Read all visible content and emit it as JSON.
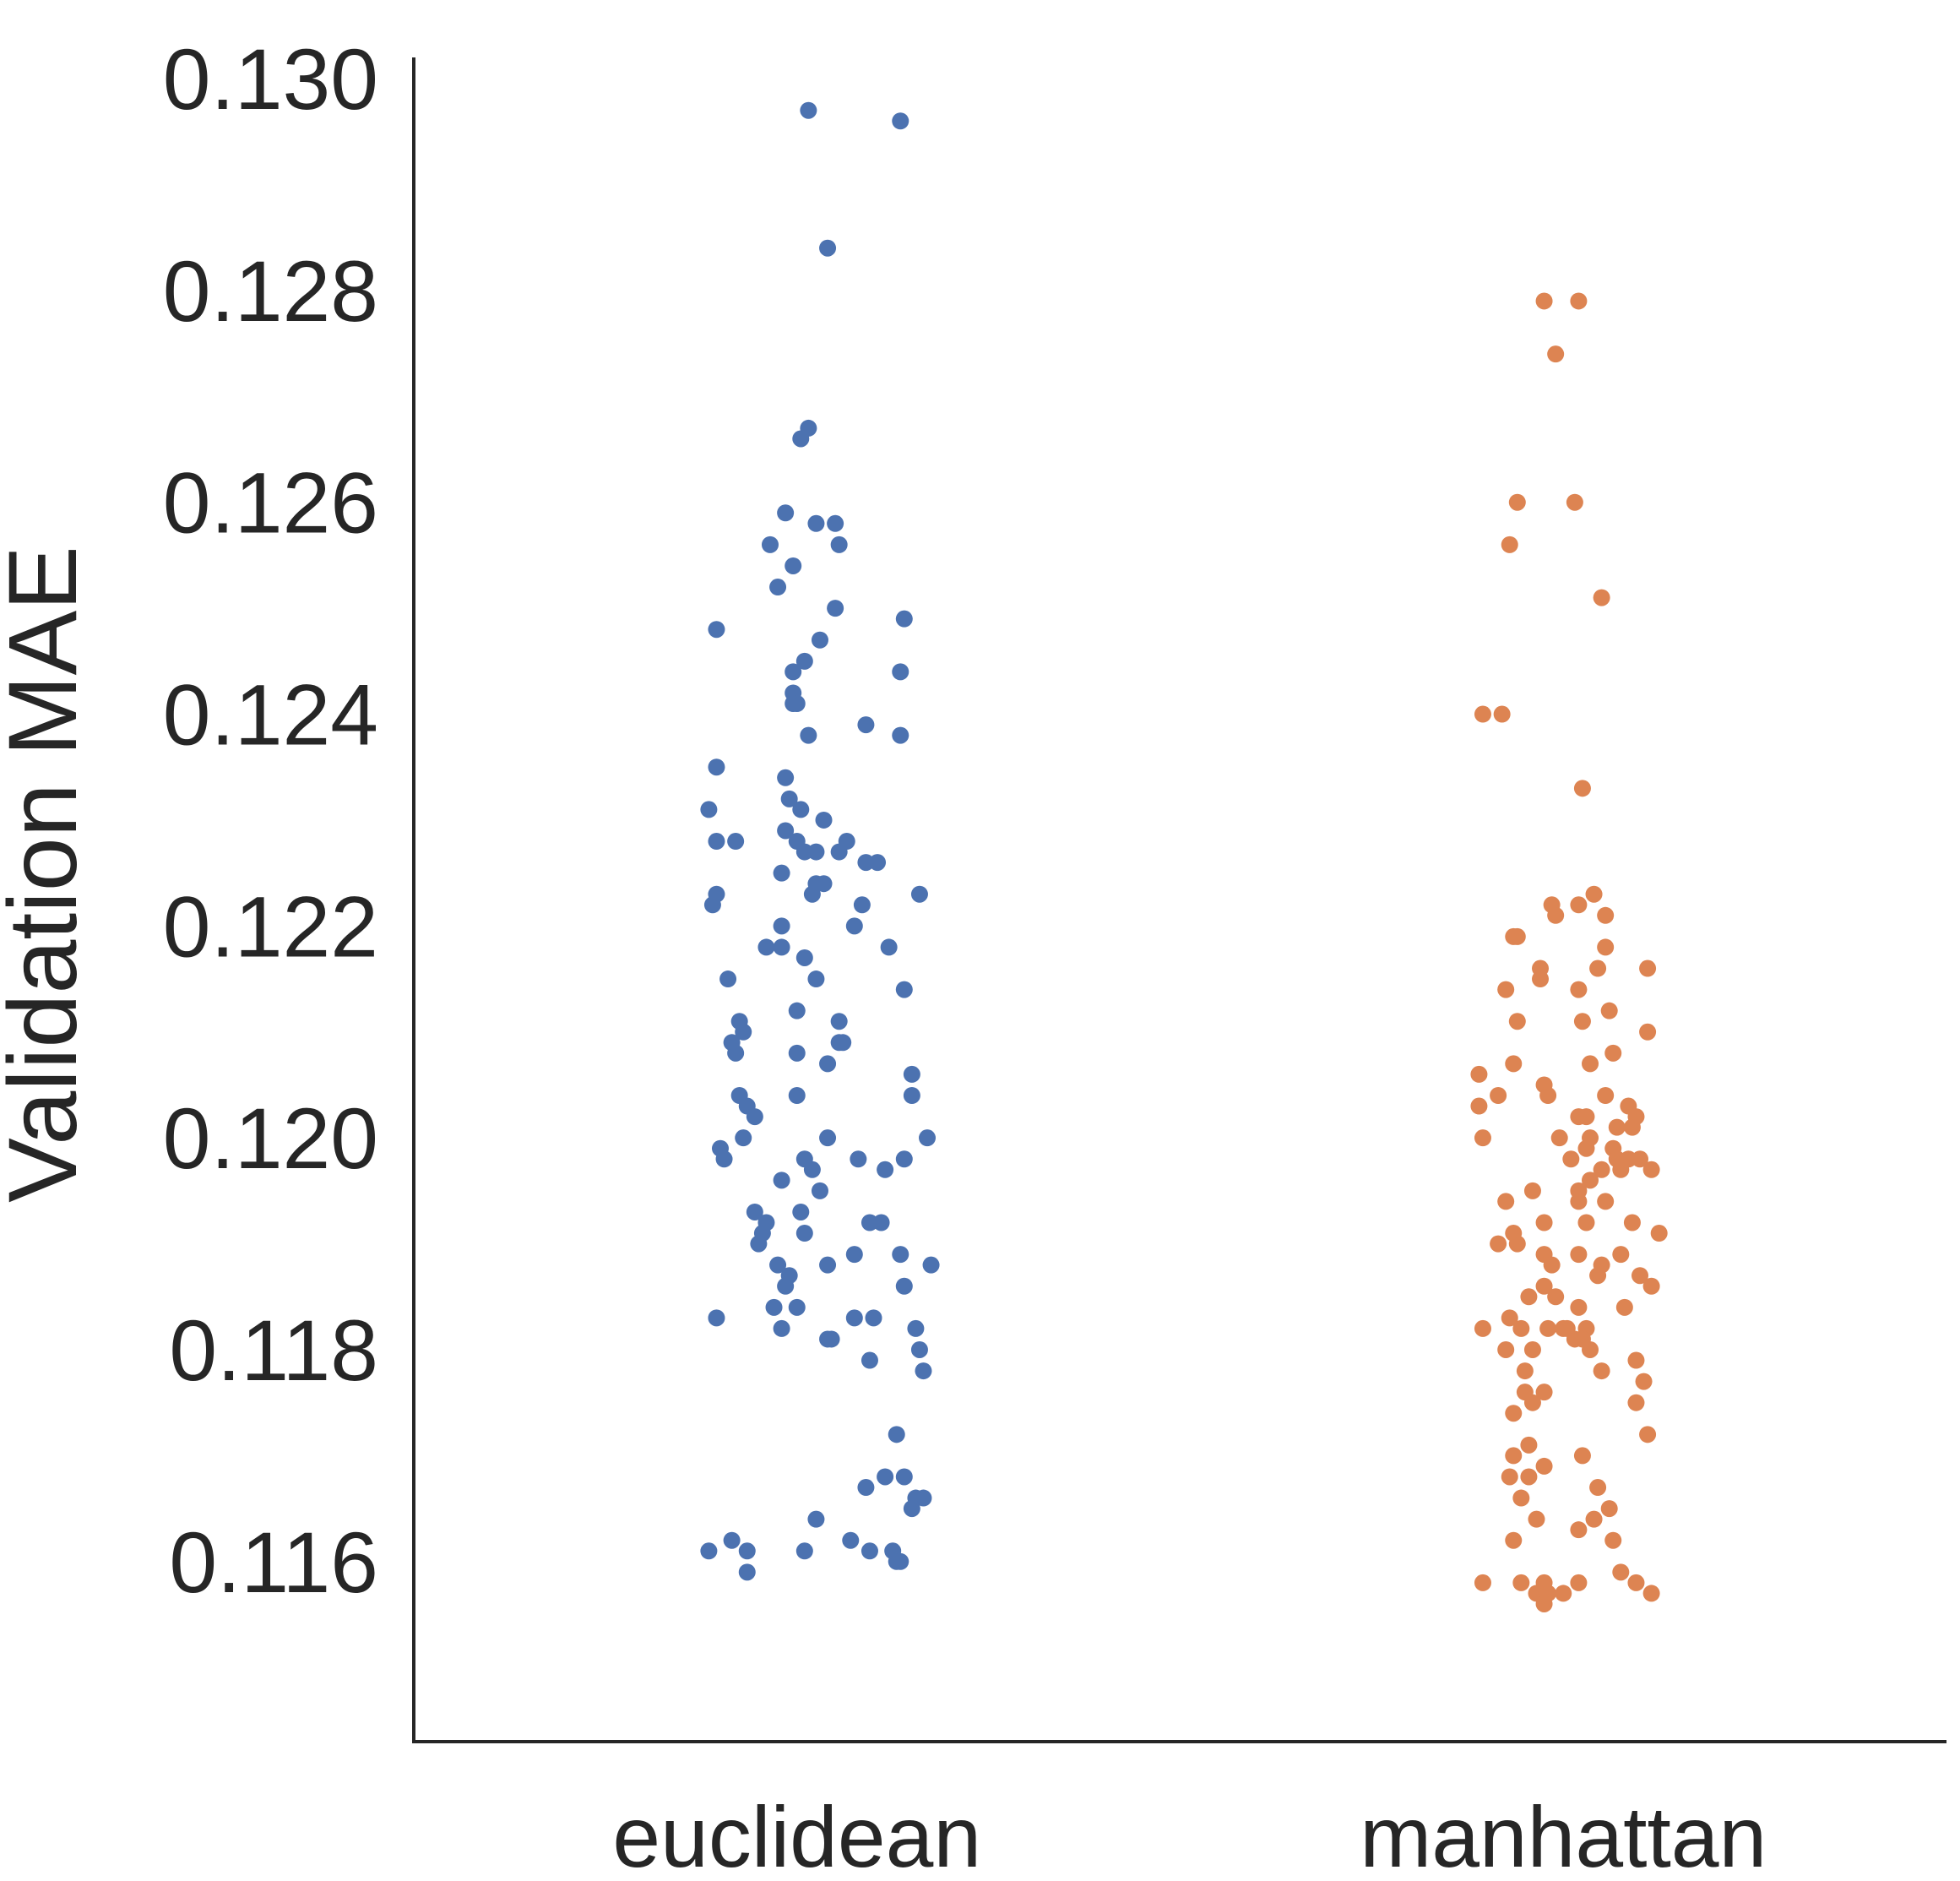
{
  "chart_data": {
    "type": "scatter",
    "subtype": "strip",
    "title": "",
    "xlabel": "",
    "ylabel": "Validation MAE",
    "ylim": [
      0.1143,
      0.1302
    ],
    "yticks": [
      0.116,
      0.118,
      0.12,
      0.122,
      0.124,
      0.126,
      0.128,
      0.13
    ],
    "ytick_labels": [
      "0.116",
      "0.118",
      "0.120",
      "0.122",
      "0.124",
      "0.126",
      "0.128",
      "0.130"
    ],
    "categories": [
      "euclidean",
      "manhattan"
    ],
    "grid": false,
    "legend": "none",
    "series": [
      {
        "category": "euclidean",
        "color": "#4c72b0",
        "points": [
          [
            0.03,
            0.1297
          ],
          [
            0.27,
            0.1296
          ],
          [
            0.08,
            0.1284
          ],
          [
            0.03,
            0.1267
          ],
          [
            0.01,
            0.1266
          ],
          [
            -0.03,
            0.1259
          ],
          [
            -0.07,
            0.1256
          ],
          [
            0.05,
            0.1258
          ],
          [
            0.1,
            0.1258
          ],
          [
            0.11,
            0.1256
          ],
          [
            -0.01,
            0.1254
          ],
          [
            -0.05,
            0.1252
          ],
          [
            0.1,
            0.125
          ],
          [
            -0.21,
            0.1248
          ],
          [
            0.28,
            0.1249
          ],
          [
            0.06,
            0.1247
          ],
          [
            0.02,
            0.1245
          ],
          [
            -0.01,
            0.1244
          ],
          [
            0.27,
            0.1244
          ],
          [
            -0.01,
            0.1242
          ],
          [
            0.0,
            0.1241
          ],
          [
            -0.01,
            0.1241
          ],
          [
            0.03,
            0.1238
          ],
          [
            0.18,
            0.1239
          ],
          [
            0.27,
            0.1238
          ],
          [
            -0.21,
            0.1235
          ],
          [
            -0.03,
            0.1234
          ],
          [
            -0.23,
            0.1231
          ],
          [
            -0.02,
            0.1232
          ],
          [
            0.01,
            0.1231
          ],
          [
            0.07,
            0.123
          ],
          [
            -0.03,
            0.1229
          ],
          [
            -0.21,
            0.1228
          ],
          [
            -0.16,
            0.1228
          ],
          [
            0.0,
            0.1228
          ],
          [
            0.02,
            0.1227
          ],
          [
            0.05,
            0.1227
          ],
          [
            0.13,
            0.1228
          ],
          [
            0.11,
            0.1227
          ],
          [
            0.18,
            0.1226
          ],
          [
            0.21,
            0.1226
          ],
          [
            -0.04,
            0.1225
          ],
          [
            0.05,
            0.1224
          ],
          [
            0.07,
            0.1224
          ],
          [
            0.04,
            0.1223
          ],
          [
            -0.21,
            0.1223
          ],
          [
            -0.22,
            0.1222
          ],
          [
            0.32,
            0.1223
          ],
          [
            0.17,
            0.1222
          ],
          [
            -0.04,
            0.122
          ],
          [
            0.15,
            0.122
          ],
          [
            -0.08,
            0.1218
          ],
          [
            -0.04,
            0.1218
          ],
          [
            0.24,
            0.1218
          ],
          [
            0.02,
            0.1217
          ],
          [
            -0.18,
            0.1215
          ],
          [
            0.05,
            0.1215
          ],
          [
            0.28,
            0.1214
          ],
          [
            0.0,
            0.1212
          ],
          [
            -0.15,
            0.1211
          ],
          [
            0.11,
            0.1211
          ],
          [
            -0.14,
            0.121
          ],
          [
            -0.17,
            0.1209
          ],
          [
            0.11,
            0.1209
          ],
          [
            0.12,
            0.1209
          ],
          [
            -0.16,
            0.1208
          ],
          [
            0.0,
            0.1208
          ],
          [
            0.08,
            0.1207
          ],
          [
            0.3,
            0.1206
          ],
          [
            -0.15,
            0.1204
          ],
          [
            0.0,
            0.1204
          ],
          [
            0.3,
            0.1204
          ],
          [
            -0.13,
            0.1203
          ],
          [
            -0.11,
            0.1202
          ],
          [
            -0.2,
            0.1199
          ],
          [
            -0.14,
            0.12
          ],
          [
            0.08,
            0.12
          ],
          [
            0.34,
            0.12
          ],
          [
            -0.19,
            0.1198
          ],
          [
            0.02,
            0.1198
          ],
          [
            0.16,
            0.1198
          ],
          [
            0.28,
            0.1198
          ],
          [
            0.23,
            0.1197
          ],
          [
            0.04,
            0.1197
          ],
          [
            -0.04,
            0.1196
          ],
          [
            0.06,
            0.1195
          ],
          [
            -0.11,
            0.1193
          ],
          [
            0.01,
            0.1193
          ],
          [
            -0.08,
            0.1192
          ],
          [
            0.22,
            0.1192
          ],
          [
            0.19,
            0.1192
          ],
          [
            0.02,
            0.1191
          ],
          [
            -0.09,
            0.1191
          ],
          [
            -0.1,
            0.119
          ],
          [
            0.15,
            0.1189
          ],
          [
            0.27,
            0.1189
          ],
          [
            0.35,
            0.1188
          ],
          [
            0.08,
            0.1188
          ],
          [
            -0.05,
            0.1188
          ],
          [
            -0.02,
            0.1187
          ],
          [
            -0.03,
            0.1186
          ],
          [
            0.28,
            0.1186
          ],
          [
            -0.06,
            0.1184
          ],
          [
            0.0,
            0.1184
          ],
          [
            0.15,
            0.1183
          ],
          [
            0.2,
            0.1183
          ],
          [
            -0.21,
            0.1183
          ],
          [
            0.31,
            0.1182
          ],
          [
            -0.04,
            0.1182
          ],
          [
            0.09,
            0.1181
          ],
          [
            0.08,
            0.1181
          ],
          [
            0.19,
            0.1179
          ],
          [
            0.32,
            0.118
          ],
          [
            0.33,
            0.1178
          ],
          [
            0.26,
            0.1172
          ],
          [
            0.23,
            0.1168
          ],
          [
            0.28,
            0.1168
          ],
          [
            0.31,
            0.1166
          ],
          [
            0.18,
            0.1167
          ],
          [
            0.33,
            0.1166
          ],
          [
            0.3,
            0.1165
          ],
          [
            0.05,
            0.1164
          ],
          [
            -0.17,
            0.1162
          ],
          [
            0.14,
            0.1162
          ],
          [
            0.19,
            0.1161
          ],
          [
            -0.13,
            0.1161
          ],
          [
            0.02,
            0.1161
          ],
          [
            0.25,
            0.1161
          ],
          [
            0.26,
            0.116
          ],
          [
            -0.13,
            0.1159
          ],
          [
            0.27,
            0.116
          ],
          [
            -0.23,
            0.1161
          ]
        ]
      },
      {
        "category": "manhattan",
        "color": "#dd8452",
        "points": [
          [
            -0.05,
            0.1279
          ],
          [
            0.04,
            0.1279
          ],
          [
            -0.02,
            0.1274
          ],
          [
            -0.12,
            0.126
          ],
          [
            -0.14,
            0.1256
          ],
          [
            0.03,
            0.126
          ],
          [
            0.1,
            0.1251
          ],
          [
            -0.21,
            0.124
          ],
          [
            -0.16,
            0.124
          ],
          [
            0.05,
            0.1233
          ],
          [
            0.08,
            0.1223
          ],
          [
            -0.03,
            0.1222
          ],
          [
            0.04,
            0.1222
          ],
          [
            0.11,
            0.1221
          ],
          [
            -0.02,
            0.1221
          ],
          [
            -0.12,
            0.1219
          ],
          [
            -0.13,
            0.1219
          ],
          [
            0.11,
            0.1218
          ],
          [
            -0.06,
            0.1216
          ],
          [
            0.09,
            0.1216
          ],
          [
            0.22,
            0.1216
          ],
          [
            -0.06,
            0.1215
          ],
          [
            0.04,
            0.1214
          ],
          [
            -0.15,
            0.1214
          ],
          [
            0.12,
            0.1212
          ],
          [
            -0.12,
            0.1211
          ],
          [
            0.05,
            0.1211
          ],
          [
            0.22,
            0.121
          ],
          [
            0.13,
            0.1208
          ],
          [
            -0.13,
            0.1207
          ],
          [
            0.07,
            0.1207
          ],
          [
            -0.22,
            0.1206
          ],
          [
            -0.05,
            0.1205
          ],
          [
            -0.04,
            0.1204
          ],
          [
            -0.17,
            0.1204
          ],
          [
            0.11,
            0.1204
          ],
          [
            -0.22,
            0.1203
          ],
          [
            0.17,
            0.1203
          ],
          [
            0.04,
            0.1202
          ],
          [
            0.06,
            0.1202
          ],
          [
            0.19,
            0.1202
          ],
          [
            0.14,
            0.1201
          ],
          [
            0.18,
            0.1201
          ],
          [
            -0.01,
            0.12
          ],
          [
            0.07,
            0.12
          ],
          [
            -0.21,
            0.12
          ],
          [
            0.06,
            0.1199
          ],
          [
            0.13,
            0.1199
          ],
          [
            0.17,
            0.1198
          ],
          [
            0.14,
            0.1198
          ],
          [
            0.2,
            0.1198
          ],
          [
            0.02,
            0.1198
          ],
          [
            0.15,
            0.1197
          ],
          [
            0.23,
            0.1197
          ],
          [
            0.1,
            0.1197
          ],
          [
            0.07,
            0.1196
          ],
          [
            0.04,
            0.1195
          ],
          [
            -0.08,
            0.1195
          ],
          [
            0.11,
            0.1194
          ],
          [
            -0.15,
            0.1194
          ],
          [
            0.04,
            0.1194
          ],
          [
            0.06,
            0.1192
          ],
          [
            0.18,
            0.1192
          ],
          [
            -0.05,
            0.1192
          ],
          [
            -0.13,
            0.1191
          ],
          [
            0.25,
            0.1191
          ],
          [
            -0.12,
            0.119
          ],
          [
            -0.17,
            0.119
          ],
          [
            0.15,
            0.1189
          ],
          [
            0.04,
            0.1189
          ],
          [
            -0.05,
            0.1189
          ],
          [
            -0.03,
            0.1188
          ],
          [
            0.1,
            0.1188
          ],
          [
            0.09,
            0.1187
          ],
          [
            0.2,
            0.1187
          ],
          [
            -0.05,
            0.1186
          ],
          [
            -0.02,
            0.1185
          ],
          [
            0.23,
            0.1186
          ],
          [
            -0.09,
            0.1185
          ],
          [
            0.04,
            0.1184
          ],
          [
            0.16,
            0.1184
          ],
          [
            -0.21,
            0.1182
          ],
          [
            -0.14,
            0.1183
          ],
          [
            0.0,
            0.1182
          ],
          [
            -0.04,
            0.1182
          ],
          [
            0.06,
            0.1182
          ],
          [
            0.01,
            0.1182
          ],
          [
            -0.11,
            0.1182
          ],
          [
            -0.15,
            0.118
          ],
          [
            0.05,
            0.1181
          ],
          [
            0.03,
            0.1181
          ],
          [
            -0.08,
            0.118
          ],
          [
            0.07,
            0.118
          ],
          [
            0.19,
            0.1179
          ],
          [
            0.1,
            0.1178
          ],
          [
            -0.1,
            0.1178
          ],
          [
            -0.05,
            0.1176
          ],
          [
            -0.1,
            0.1176
          ],
          [
            0.21,
            0.1177
          ],
          [
            0.19,
            0.1175
          ],
          [
            -0.08,
            0.1175
          ],
          [
            -0.13,
            0.1174
          ],
          [
            0.22,
            0.1172
          ],
          [
            -0.09,
            0.1171
          ],
          [
            -0.13,
            0.117
          ],
          [
            -0.05,
            0.1169
          ],
          [
            -0.09,
            0.1168
          ],
          [
            -0.14,
            0.1168
          ],
          [
            0.05,
            0.117
          ],
          [
            0.09,
            0.1167
          ],
          [
            -0.11,
            0.1166
          ],
          [
            0.12,
            0.1165
          ],
          [
            0.04,
            0.1163
          ],
          [
            0.08,
            0.1164
          ],
          [
            -0.07,
            0.1164
          ],
          [
            0.13,
            0.1162
          ],
          [
            -0.13,
            0.1162
          ],
          [
            0.15,
            0.1159
          ],
          [
            -0.05,
            0.1158
          ],
          [
            -0.11,
            0.1158
          ],
          [
            0.23,
            0.1157
          ],
          [
            0.19,
            0.1158
          ],
          [
            0.04,
            0.1158
          ],
          [
            -0.07,
            0.1157
          ],
          [
            -0.21,
            0.1158
          ],
          [
            0.0,
            0.1157
          ],
          [
            -0.04,
            0.1157
          ],
          [
            -0.05,
            0.1156
          ]
        ]
      }
    ]
  }
}
